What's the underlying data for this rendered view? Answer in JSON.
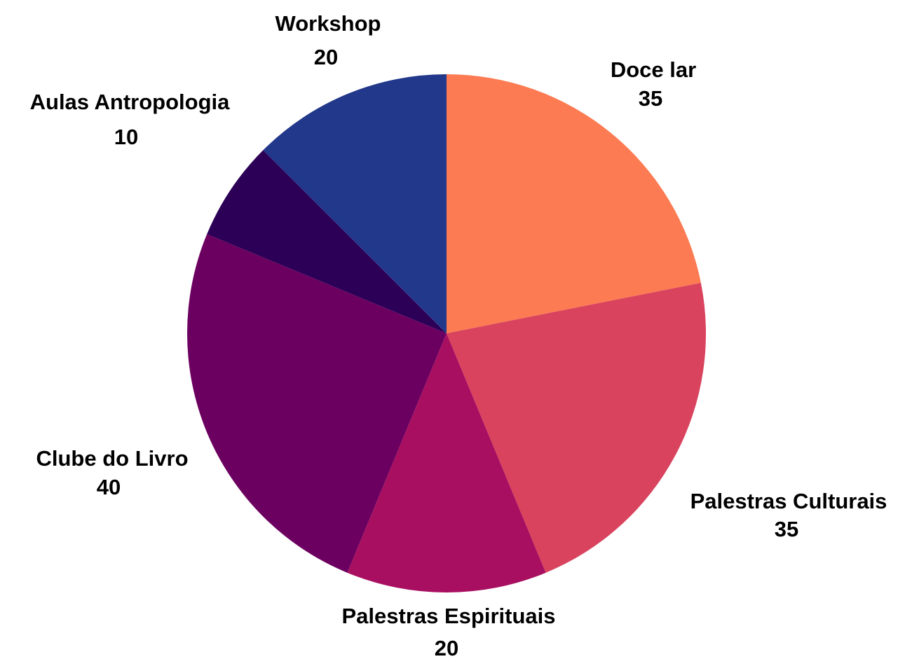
{
  "chart_data": {
    "type": "pie",
    "categories": [
      "Doce lar",
      "Palestras Culturais",
      "Palestras Espirituais",
      "Clube do Livro",
      "Aulas Antropologia",
      "Workshop"
    ],
    "values": [
      35,
      35,
      20,
      40,
      10,
      20
    ],
    "colors": [
      "#FC7B52",
      "#D9435E",
      "#A80F60",
      "#6C0060",
      "#2D0057",
      "#22388A"
    ]
  }
}
